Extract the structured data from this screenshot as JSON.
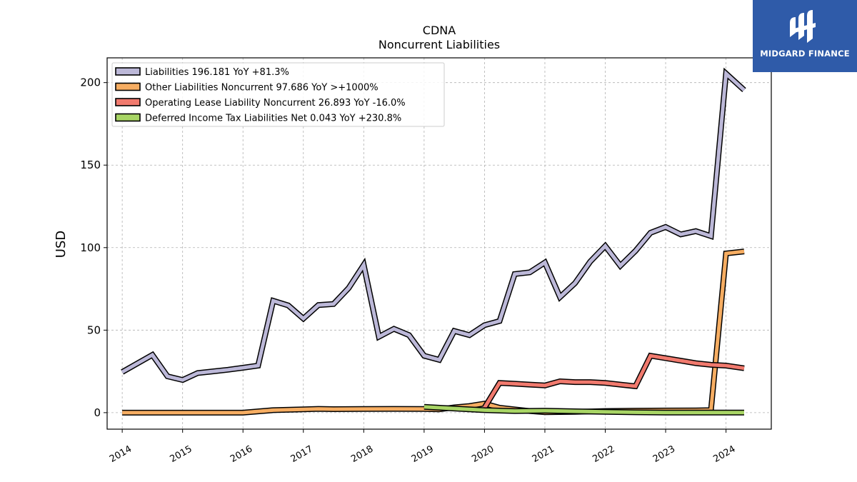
{
  "brand": {
    "name": "MIDGARD FINANCE"
  },
  "chart_data": {
    "type": "line",
    "title": "CDNA",
    "subtitle": "Noncurrent  Liabilities",
    "xlabel": "",
    "ylabel": "USD",
    "xlim": [
      2013.75,
      2024.75
    ],
    "ylim": [
      -10,
      215
    ],
    "yticks": [
      0,
      50,
      100,
      150,
      200
    ],
    "xticks": [
      "2014",
      "2015",
      "2016",
      "2017",
      "2018",
      "2019",
      "2020",
      "2021",
      "2022",
      "2023",
      "2024"
    ],
    "grid": true,
    "legend_position": "top-left",
    "series": [
      {
        "name": "Liabilities",
        "legend": "Liabilities  196.181 YoY +81.3%",
        "color": "#bcb8d8",
        "points": [
          [
            2014.0,
            24.6
          ],
          [
            2014.5,
            35.0
          ],
          [
            2014.75,
            22.0
          ],
          [
            2015.0,
            19.8
          ],
          [
            2015.25,
            24.0
          ],
          [
            2015.5,
            25.0
          ],
          [
            2015.75,
            26.0
          ],
          [
            2016.0,
            27.2
          ],
          [
            2016.25,
            28.5
          ],
          [
            2016.5,
            67.8
          ],
          [
            2016.75,
            65.0
          ],
          [
            2017.0,
            57.0
          ],
          [
            2017.25,
            65.2
          ],
          [
            2017.5,
            65.8
          ],
          [
            2017.75,
            75.5
          ],
          [
            2018.0,
            89.5
          ],
          [
            2018.25,
            46.0
          ],
          [
            2018.5,
            50.8
          ],
          [
            2018.75,
            47.0
          ],
          [
            2019.0,
            34.5
          ],
          [
            2019.25,
            32.0
          ],
          [
            2019.5,
            49.5
          ],
          [
            2019.75,
            47.0
          ],
          [
            2020.0,
            53.0
          ],
          [
            2020.25,
            55.5
          ],
          [
            2020.5,
            84.0
          ],
          [
            2020.75,
            85.0
          ],
          [
            2021.0,
            91.0
          ],
          [
            2021.25,
            70.0
          ],
          [
            2021.5,
            78.5
          ],
          [
            2021.75,
            91.5
          ],
          [
            2022.0,
            101.0
          ],
          [
            2022.25,
            89.0
          ],
          [
            2022.5,
            98.0
          ],
          [
            2022.75,
            109.0
          ],
          [
            2023.0,
            112.5
          ],
          [
            2023.25,
            108.0
          ],
          [
            2023.5,
            110.0
          ],
          [
            2023.75,
            107.0
          ],
          [
            2024.0,
            205.5
          ],
          [
            2024.3,
            195.5
          ]
        ]
      },
      {
        "name": "Other Liabilities Noncurrent",
        "legend": "Other Liabilities Noncurrent  97.686 YoY >+1000%",
        "color": "#f6ad62",
        "points": [
          [
            2014.0,
            0.0
          ],
          [
            2014.5,
            0.0
          ],
          [
            2015.0,
            0.0
          ],
          [
            2015.5,
            0.0
          ],
          [
            2016.0,
            0.0
          ],
          [
            2016.5,
            1.5
          ],
          [
            2017.0,
            2.0
          ],
          [
            2017.25,
            2.3
          ],
          [
            2017.5,
            2.1
          ],
          [
            2018.0,
            2.2
          ],
          [
            2018.5,
            2.3
          ],
          [
            2019.0,
            2.2
          ],
          [
            2019.25,
            2.0
          ],
          [
            2019.5,
            3.2
          ],
          [
            2019.75,
            4.0
          ],
          [
            2020.0,
            5.5
          ],
          [
            2020.25,
            3.0
          ],
          [
            2020.5,
            2.0
          ],
          [
            2020.75,
            1.0
          ],
          [
            2021.0,
            0.3
          ],
          [
            2021.5,
            0.5
          ],
          [
            2022.0,
            1.0
          ],
          [
            2022.5,
            1.2
          ],
          [
            2023.0,
            1.3
          ],
          [
            2023.5,
            1.4
          ],
          [
            2023.75,
            1.5
          ],
          [
            2024.0,
            96.5
          ],
          [
            2024.3,
            97.7
          ]
        ]
      },
      {
        "name": "Operating Lease Liability Noncurrent",
        "legend": "Operating Lease Liability Noncurrent  26.893 YoY -16.0%",
        "color": "#f17a6e",
        "points": [
          [
            2020.0,
            3.0
          ],
          [
            2020.25,
            18.0
          ],
          [
            2020.5,
            17.5
          ],
          [
            2020.75,
            17.0
          ],
          [
            2021.0,
            16.5
          ],
          [
            2021.25,
            19.0
          ],
          [
            2021.5,
            18.5
          ],
          [
            2021.75,
            18.5
          ],
          [
            2022.0,
            18.0
          ],
          [
            2022.25,
            17.0
          ],
          [
            2022.5,
            16.0
          ],
          [
            2022.75,
            34.5
          ],
          [
            2023.0,
            33.0
          ],
          [
            2023.25,
            31.5
          ],
          [
            2023.5,
            30.0
          ],
          [
            2023.75,
            29.0
          ],
          [
            2024.0,
            28.5
          ],
          [
            2024.3,
            26.9
          ]
        ]
      },
      {
        "name": "Deferred Income Tax Liabilities Net",
        "legend": "Deferred Income Tax Liabilities Net  0.043 YoY +230.8%",
        "color": "#a8d565",
        "points": [
          [
            2019.0,
            3.5
          ],
          [
            2019.5,
            2.5
          ],
          [
            2020.0,
            1.5
          ],
          [
            2020.5,
            1.0
          ],
          [
            2021.0,
            1.2
          ],
          [
            2021.5,
            0.8
          ],
          [
            2022.0,
            0.5
          ],
          [
            2022.5,
            0.2
          ],
          [
            2023.0,
            0.1
          ],
          [
            2023.5,
            0.1
          ],
          [
            2024.0,
            0.1
          ],
          [
            2024.3,
            0.04
          ]
        ]
      }
    ]
  }
}
